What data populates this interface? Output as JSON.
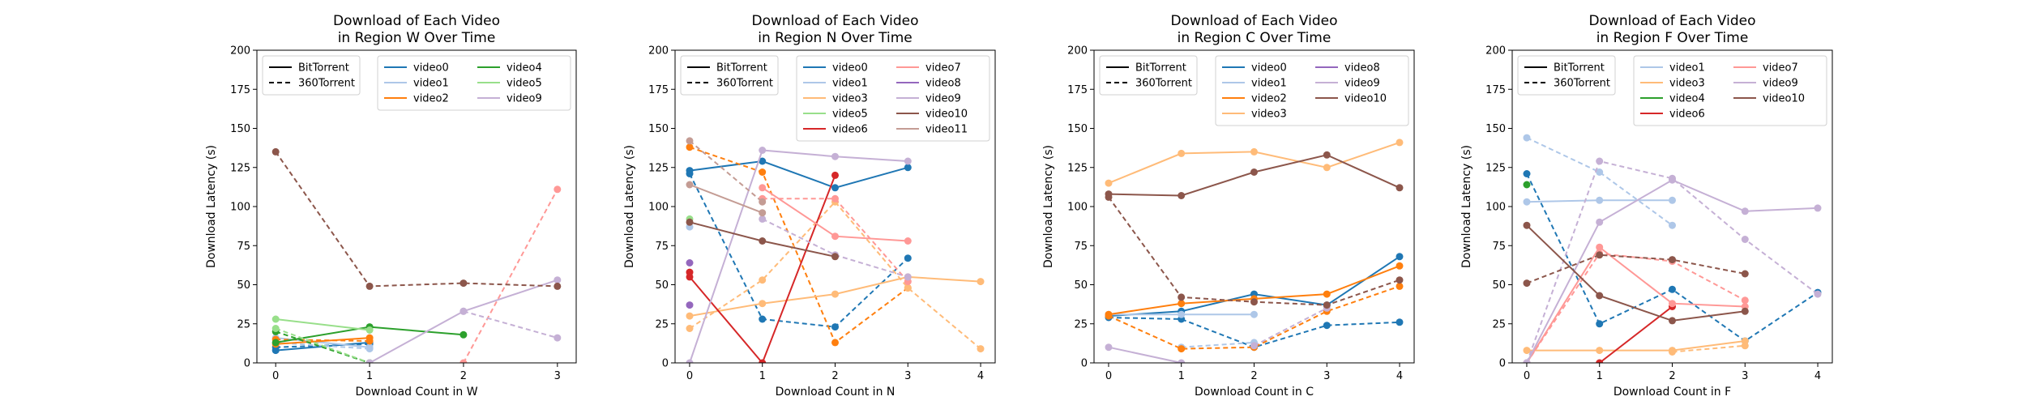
{
  "colors": {
    "video0": "#1f77b4",
    "video1": "#aec7e8",
    "video2": "#ff7f0e",
    "video3": "#ffbb78",
    "video4": "#2ca02c",
    "video5": "#98df8a",
    "video6": "#d62728",
    "video7": "#ff9896",
    "video8": "#9467bd",
    "video9": "#c5b0d5",
    "video10": "#8c564b",
    "video11": "#c49c94"
  },
  "chart_data": [
    {
      "type": "line",
      "title": [
        "Download of Each Video",
        "in Region W Over Time"
      ],
      "xlabel": "Download Count in W",
      "ylabel": "Download Latency (s)",
      "xticks": [
        0,
        1,
        2,
        3
      ],
      "yticks": [
        0,
        25,
        50,
        75,
        100,
        125,
        150,
        175,
        200
      ],
      "xlim": [
        -0.2,
        3.2
      ],
      "ylim": [
        0,
        200
      ],
      "grid": false,
      "style_legend": {
        "placement": "top-left",
        "items": [
          {
            "label": "BitTorrent",
            "dash": "solid"
          },
          {
            "label": "360Torrent",
            "dash": "dashed"
          }
        ]
      },
      "video_legend": {
        "placement": "top-right",
        "columns": 2,
        "items": [
          "video0",
          "video1",
          "video2",
          "video4",
          "video5",
          "video9"
        ]
      },
      "series": [
        {
          "video": "video0",
          "protocol": "BitTorrent",
          "x": [
            0,
            1
          ],
          "y": [
            8,
            13
          ]
        },
        {
          "video": "video0",
          "protocol": "360Torrent",
          "x": [
            0,
            1
          ],
          "y": [
            10,
            12
          ]
        },
        {
          "video": "video1",
          "protocol": "BitTorrent",
          "x": [
            0,
            1
          ],
          "y": [
            16,
            10
          ]
        },
        {
          "video": "video1",
          "protocol": "360Torrent",
          "x": [
            0,
            1
          ],
          "y": [
            13,
            9
          ]
        },
        {
          "video": "video2",
          "protocol": "BitTorrent",
          "x": [
            0,
            1
          ],
          "y": [
            12,
            16
          ]
        },
        {
          "video": "video2",
          "protocol": "360Torrent",
          "x": [
            0,
            1
          ],
          "y": [
            15,
            14
          ]
        },
        {
          "video": "video4",
          "protocol": "BitTorrent",
          "x": [
            0,
            1,
            2
          ],
          "y": [
            13,
            23,
            18
          ]
        },
        {
          "video": "video4",
          "protocol": "360Torrent",
          "x": [
            0,
            1
          ],
          "y": [
            20,
            0
          ]
        },
        {
          "video": "video5",
          "protocol": "BitTorrent",
          "x": [
            0,
            1
          ],
          "y": [
            28,
            21
          ]
        },
        {
          "video": "video5",
          "protocol": "360Torrent",
          "x": [
            0,
            1
          ],
          "y": [
            22,
            0
          ]
        },
        {
          "video": "video7",
          "protocol": "360Torrent",
          "x": [
            2,
            3
          ],
          "y": [
            0,
            111
          ]
        },
        {
          "video": "video9",
          "protocol": "BitTorrent",
          "x": [
            1,
            2,
            3
          ],
          "y": [
            0,
            33,
            53
          ]
        },
        {
          "video": "video9",
          "protocol": "360Torrent",
          "x": [
            2,
            3
          ],
          "y": [
            33,
            16
          ]
        },
        {
          "video": "video10",
          "protocol": "360Torrent",
          "x": [
            0,
            1,
            2,
            3
          ],
          "y": [
            135,
            49,
            51,
            49
          ]
        }
      ]
    },
    {
      "type": "line",
      "title": [
        "Download of Each Video",
        "in Region N Over Time"
      ],
      "xlabel": "Download Count in N",
      "ylabel": "Download Latency (s)",
      "xticks": [
        0,
        1,
        2,
        3,
        4
      ],
      "yticks": [
        0,
        25,
        50,
        75,
        100,
        125,
        150,
        175,
        200
      ],
      "xlim": [
        -0.2,
        4.2
      ],
      "ylim": [
        0,
        200
      ],
      "grid": false,
      "style_legend": {
        "placement": "top-left",
        "items": [
          {
            "label": "BitTorrent",
            "dash": "solid"
          },
          {
            "label": "360Torrent",
            "dash": "dashed"
          }
        ]
      },
      "video_legend": {
        "placement": "top-right",
        "columns": 2,
        "items": [
          "video0",
          "video1",
          "video3",
          "video5",
          "video6",
          "video7",
          "video8",
          "video9",
          "video10",
          "video11"
        ]
      },
      "series": [
        {
          "video": "video0",
          "protocol": "BitTorrent",
          "x": [
            0,
            1,
            2,
            3
          ],
          "y": [
            123,
            129,
            112,
            125
          ]
        },
        {
          "video": "video0",
          "protocol": "360Torrent",
          "x": [
            0,
            1,
            2,
            3
          ],
          "y": [
            121,
            28,
            23,
            67
          ]
        },
        {
          "video": "video1",
          "protocol": "BitTorrent",
          "x": [
            0
          ],
          "y": [
            87
          ]
        },
        {
          "video": "video2",
          "protocol": "360Torrent",
          "x": [
            0,
            1,
            2,
            3
          ],
          "y": [
            138,
            122,
            13,
            48
          ]
        },
        {
          "video": "video3",
          "protocol": "BitTorrent",
          "x": [
            0,
            1,
            2,
            3,
            4
          ],
          "y": [
            30,
            38,
            44,
            55,
            52
          ]
        },
        {
          "video": "video3",
          "protocol": "360Torrent",
          "x": [
            0,
            1,
            2,
            3,
            4
          ],
          "y": [
            22,
            53,
            103,
            48,
            9
          ]
        },
        {
          "video": "video5",
          "protocol": "BitTorrent",
          "x": [
            0
          ],
          "y": [
            92
          ]
        },
        {
          "video": "video6",
          "protocol": "BitTorrent",
          "x": [
            0,
            1,
            2
          ],
          "y": [
            55,
            0,
            120
          ]
        },
        {
          "video": "video6",
          "protocol": "360Torrent",
          "x": [
            0
          ],
          "y": [
            58
          ]
        },
        {
          "video": "video7",
          "protocol": "BitTorrent",
          "x": [
            1,
            2,
            3
          ],
          "y": [
            112,
            81,
            78
          ]
        },
        {
          "video": "video7",
          "protocol": "360Torrent",
          "x": [
            1,
            2,
            3
          ],
          "y": [
            105,
            105,
            52
          ]
        },
        {
          "video": "video8",
          "protocol": "BitTorrent",
          "x": [
            0
          ],
          "y": [
            64
          ]
        },
        {
          "video": "video8",
          "protocol": "360Torrent",
          "x": [
            0
          ],
          "y": [
            37
          ]
        },
        {
          "video": "video9",
          "protocol": "BitTorrent",
          "x": [
            0,
            1,
            2,
            3
          ],
          "y": [
            0,
            136,
            132,
            129
          ]
        },
        {
          "video": "video9",
          "protocol": "360Torrent",
          "x": [
            1,
            2,
            3
          ],
          "y": [
            92,
            69,
            55
          ]
        },
        {
          "video": "video10",
          "protocol": "BitTorrent",
          "x": [
            0,
            1,
            2
          ],
          "y": [
            90,
            78,
            68
          ]
        },
        {
          "video": "video11",
          "protocol": "360Torrent",
          "x": [
            0,
            1
          ],
          "y": [
            142,
            103
          ]
        },
        {
          "video": "video11",
          "protocol": "BitTorrent",
          "x": [
            0,
            1
          ],
          "y": [
            114,
            96
          ]
        }
      ]
    },
    {
      "type": "line",
      "title": [
        "Download of Each Video",
        "in Region C Over Time"
      ],
      "xlabel": "Download Count in C",
      "ylabel": "Download Latency (s)",
      "xticks": [
        0,
        1,
        2,
        3,
        4
      ],
      "yticks": [
        0,
        25,
        50,
        75,
        100,
        125,
        150,
        175,
        200
      ],
      "xlim": [
        -0.2,
        4.2
      ],
      "ylim": [
        0,
        200
      ],
      "grid": false,
      "style_legend": {
        "placement": "top-left",
        "items": [
          {
            "label": "BitTorrent",
            "dash": "solid"
          },
          {
            "label": "360Torrent",
            "dash": "dashed"
          }
        ]
      },
      "video_legend": {
        "placement": "top-right",
        "columns": 2,
        "items": [
          "video0",
          "video1",
          "video2",
          "video3",
          "video8",
          "video9",
          "video10"
        ]
      },
      "series": [
        {
          "video": "video0",
          "protocol": "BitTorrent",
          "x": [
            0,
            1,
            2,
            3,
            4
          ],
          "y": [
            30,
            33,
            44,
            37,
            68
          ]
        },
        {
          "video": "video0",
          "protocol": "360Torrent",
          "x": [
            0,
            1,
            2,
            3,
            4
          ],
          "y": [
            29,
            28,
            10,
            24,
            26
          ]
        },
        {
          "video": "video1",
          "protocol": "BitTorrent",
          "x": [
            0,
            1,
            2
          ],
          "y": [
            31,
            31,
            31
          ]
        },
        {
          "video": "video1",
          "protocol": "360Torrent",
          "x": [
            1,
            2
          ],
          "y": [
            10,
            13
          ]
        },
        {
          "video": "video2",
          "protocol": "BitTorrent",
          "x": [
            0,
            1,
            2,
            3,
            4
          ],
          "y": [
            31,
            38,
            41,
            44,
            62
          ]
        },
        {
          "video": "video2",
          "protocol": "360Torrent",
          "x": [
            0,
            1,
            2,
            3,
            4
          ],
          "y": [
            30,
            9,
            10,
            33,
            49
          ]
        },
        {
          "video": "video3",
          "protocol": "BitTorrent",
          "x": [
            0,
            1,
            2,
            3,
            4
          ],
          "y": [
            115,
            134,
            135,
            125,
            141
          ]
        },
        {
          "video": "video9",
          "protocol": "BitTorrent",
          "x": [
            0,
            1
          ],
          "y": [
            10,
            0
          ]
        },
        {
          "video": "video9",
          "protocol": "360Torrent",
          "x": [
            2,
            3
          ],
          "y": [
            11,
            35
          ]
        },
        {
          "video": "video10",
          "protocol": "BitTorrent",
          "x": [
            0,
            1,
            2,
            3,
            4
          ],
          "y": [
            108,
            107,
            122,
            133,
            112
          ]
        },
        {
          "video": "video10",
          "protocol": "360Torrent",
          "x": [
            0,
            1,
            2,
            3,
            4
          ],
          "y": [
            106,
            42,
            39,
            37,
            53
          ]
        }
      ]
    },
    {
      "type": "line",
      "title": [
        "Download of Each Video",
        "in Region F Over Time"
      ],
      "xlabel": "Download Count in F",
      "ylabel": "Download Latency (s)",
      "xticks": [
        0,
        1,
        2,
        3,
        4
      ],
      "yticks": [
        0,
        25,
        50,
        75,
        100,
        125,
        150,
        175,
        200
      ],
      "xlim": [
        -0.2,
        4.2
      ],
      "ylim": [
        0,
        200
      ],
      "grid": false,
      "style_legend": {
        "placement": "top-left",
        "items": [
          {
            "label": "BitTorrent",
            "dash": "solid"
          },
          {
            "label": "360Torrent",
            "dash": "dashed"
          }
        ]
      },
      "video_legend": {
        "placement": "top-right",
        "columns": 2,
        "items": [
          "video1",
          "video3",
          "video4",
          "video6",
          "video7",
          "video9",
          "video10"
        ]
      },
      "series": [
        {
          "video": "video0",
          "protocol": "360Torrent",
          "x": [
            0,
            1,
            2,
            3,
            4
          ],
          "y": [
            121,
            25,
            47,
            14,
            45
          ]
        },
        {
          "video": "video1",
          "protocol": "BitTorrent",
          "x": [
            0,
            1,
            2
          ],
          "y": [
            103,
            104,
            104
          ]
        },
        {
          "video": "video1",
          "protocol": "360Torrent",
          "x": [
            0,
            1,
            2
          ],
          "y": [
            144,
            122,
            88
          ]
        },
        {
          "video": "video3",
          "protocol": "BitTorrent",
          "x": [
            0,
            1,
            2,
            3
          ],
          "y": [
            8,
            8,
            8,
            14
          ]
        },
        {
          "video": "video3",
          "protocol": "360Torrent",
          "x": [
            2,
            3
          ],
          "y": [
            7,
            11
          ]
        },
        {
          "video": "video4",
          "protocol": "BitTorrent",
          "x": [
            0
          ],
          "y": [
            114
          ]
        },
        {
          "video": "video6",
          "protocol": "BitTorrent",
          "x": [
            1,
            2
          ],
          "y": [
            0,
            36
          ]
        },
        {
          "video": "video7",
          "protocol": "BitTorrent",
          "x": [
            0,
            1,
            2,
            3
          ],
          "y": [
            0,
            74,
            38,
            36
          ]
        },
        {
          "video": "video7",
          "protocol": "360Torrent",
          "x": [
            0,
            1,
            2,
            3
          ],
          "y": [
            0,
            70,
            65,
            40
          ]
        },
        {
          "video": "video9",
          "protocol": "BitTorrent",
          "x": [
            0,
            1,
            2,
            3,
            4
          ],
          "y": [
            0,
            90,
            117,
            97,
            99
          ]
        },
        {
          "video": "video9",
          "protocol": "360Torrent",
          "x": [
            0,
            1,
            2,
            3,
            4
          ],
          "y": [
            0,
            129,
            118,
            79,
            44
          ]
        },
        {
          "video": "video10",
          "protocol": "BitTorrent",
          "x": [
            0,
            1,
            2,
            3
          ],
          "y": [
            88,
            43,
            27,
            33
          ]
        },
        {
          "video": "video10",
          "protocol": "360Torrent",
          "x": [
            0,
            1,
            2,
            3
          ],
          "y": [
            51,
            69,
            66,
            57
          ]
        }
      ]
    }
  ]
}
